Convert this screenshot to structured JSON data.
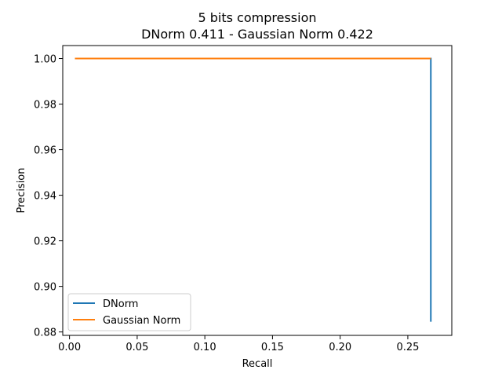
{
  "chart_data": {
    "type": "line",
    "title": "5 bits compression",
    "subtitle": "DNorm 0.411 - Gaussian Norm 0.422",
    "xlabel": "Recall",
    "ylabel": "Precision",
    "xlim": [
      -0.005,
      0.2825
    ],
    "ylim": [
      0.8785,
      1.0057
    ],
    "xticks": [
      0.0,
      0.05,
      0.1,
      0.15,
      0.2,
      0.25
    ],
    "xtick_labels": [
      "0.00",
      "0.05",
      "0.10",
      "0.15",
      "0.20",
      "0.25"
    ],
    "yticks": [
      0.88,
      0.9,
      0.92,
      0.94,
      0.96,
      0.98,
      1.0
    ],
    "ytick_labels": [
      "0.88",
      "0.90",
      "0.92",
      "0.94",
      "0.96",
      "0.98",
      "1.00"
    ],
    "grid": false,
    "legend_position": "lower-left",
    "series": [
      {
        "name": "DNorm",
        "color": "#1f77b4",
        "x": [
          0.004,
          0.267,
          0.267
        ],
        "y": [
          1.0,
          1.0,
          0.8845
        ]
      },
      {
        "name": "Gaussian Norm",
        "color": "#ff7f0e",
        "x": [
          0.004,
          0.267
        ],
        "y": [
          1.0,
          1.0
        ]
      }
    ]
  }
}
